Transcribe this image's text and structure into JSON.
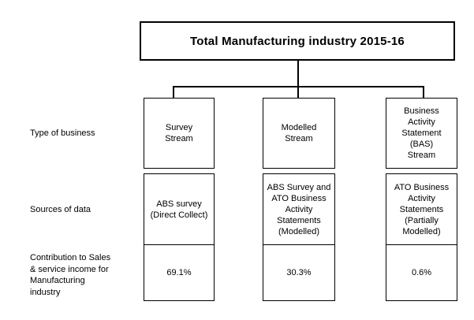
{
  "title": "Total Manufacturing industry 2015-16",
  "row_labels": {
    "type_of_business": "Type of business",
    "sources_of_data": "Sources of data",
    "contribution": "Contribution to Sales\n& service income for\nManufacturing\nindustry"
  },
  "streams": [
    {
      "type_of_business": "Survey\nStream",
      "sources_of_data": "ABS survey\n(Direct Collect)",
      "contribution_pct": "69.1%"
    },
    {
      "type_of_business": "Modelled\nStream",
      "sources_of_data": "ABS Survey and\nATO Business\nActivity\nStatements\n(Modelled)",
      "contribution_pct": "30.3%"
    },
    {
      "type_of_business": "Business\nActivity\nStatement\n(BAS)\nStream",
      "sources_of_data": "ATO Business\nActivity\nStatements\n(Partially\nModelled)",
      "contribution_pct": "0.6%"
    }
  ],
  "colors": {
    "background": "#ffffff",
    "line": "#000000",
    "text": "#000000"
  }
}
